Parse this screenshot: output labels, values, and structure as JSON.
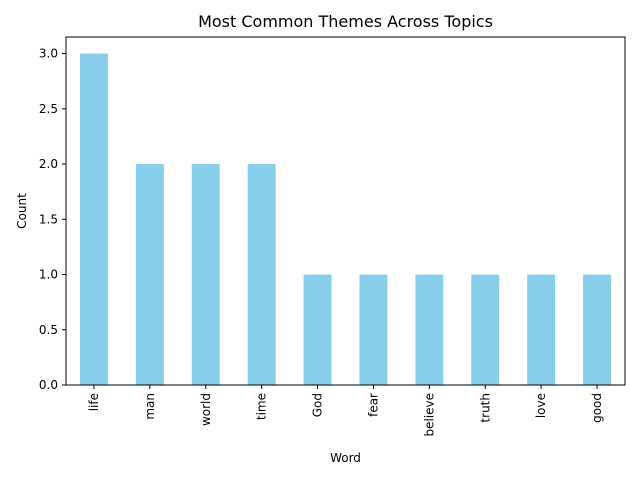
{
  "chart_data": {
    "type": "bar",
    "title": "Most Common Themes Across Topics",
    "xlabel": "Word",
    "ylabel": "Count",
    "categories": [
      "life",
      "man",
      "world",
      "time",
      "God",
      "fear",
      "believe",
      "truth",
      "love",
      "good"
    ],
    "values": [
      3,
      2,
      2,
      2,
      1,
      1,
      1,
      1,
      1,
      1
    ],
    "ylim": [
      0,
      3.15
    ],
    "yticks": [
      0.0,
      0.5,
      1.0,
      1.5,
      2.0,
      2.5,
      3.0
    ],
    "ytick_labels": [
      "0.0",
      "0.5",
      "1.0",
      "1.5",
      "2.0",
      "2.5",
      "3.0"
    ],
    "grid": false,
    "colors": {
      "bar": "#87ceeb",
      "axis": "#000000",
      "background": "#ffffff"
    }
  }
}
